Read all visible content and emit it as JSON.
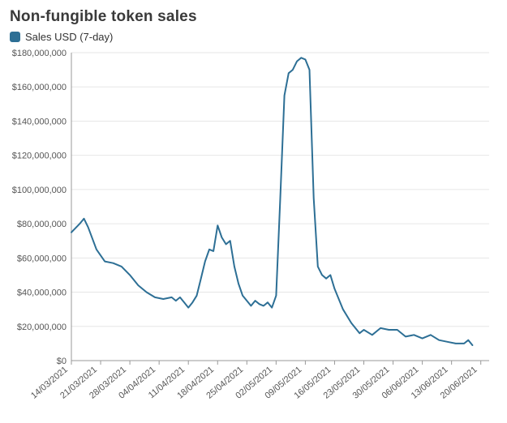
{
  "title": "Non-fungible token sales",
  "legend": {
    "label": "Sales USD (7-day)",
    "swatch_color": "#2d6f95"
  },
  "chart": {
    "type": "line",
    "line_color": "#2d6f95",
    "line_width": 2,
    "background_color": "#ffffff",
    "grid_color": "#e6e6e6",
    "axis_color": "#999999",
    "tick_font_size": 11,
    "tick_color": "#555555",
    "y": {
      "min": 0,
      "max": 180000000,
      "step": 20000000,
      "labels": [
        "$0",
        "$20,000,000",
        "$40,000,000",
        "$60,000,000",
        "$80,000,000",
        "$100,000,000",
        "$120,000,000",
        "$140,000,000",
        "$160,000,000",
        "$180,000,000"
      ]
    },
    "x": {
      "min": 0,
      "max": 100,
      "tick_positions": [
        0,
        7,
        14,
        21,
        28,
        35,
        42,
        49,
        56,
        63,
        70,
        77,
        84,
        91,
        98
      ],
      "tick_labels": [
        "14/03/2021",
        "21/03/2021",
        "28/03/2021",
        "04/04/2021",
        "11/04/2021",
        "18/04/2021",
        "25/04/2021",
        "02/05/2021",
        "09/05/2021",
        "16/05/2021",
        "23/05/2021",
        "30/05/2021",
        "06/06/2021",
        "13/06/2021",
        "20/06/2021"
      ],
      "tick_rotation": -40
    },
    "series": [
      {
        "x": 0,
        "y": 75000000
      },
      {
        "x": 2,
        "y": 80000000
      },
      {
        "x": 3,
        "y": 83000000
      },
      {
        "x": 4,
        "y": 78000000
      },
      {
        "x": 6,
        "y": 65000000
      },
      {
        "x": 8,
        "y": 58000000
      },
      {
        "x": 10,
        "y": 57000000
      },
      {
        "x": 12,
        "y": 55000000
      },
      {
        "x": 14,
        "y": 50000000
      },
      {
        "x": 16,
        "y": 44000000
      },
      {
        "x": 18,
        "y": 40000000
      },
      {
        "x": 20,
        "y": 37000000
      },
      {
        "x": 22,
        "y": 36000000
      },
      {
        "x": 24,
        "y": 37000000
      },
      {
        "x": 25,
        "y": 35000000
      },
      {
        "x": 26,
        "y": 37000000
      },
      {
        "x": 27,
        "y": 34000000
      },
      {
        "x": 28,
        "y": 31000000
      },
      {
        "x": 29,
        "y": 34000000
      },
      {
        "x": 30,
        "y": 38000000
      },
      {
        "x": 31,
        "y": 48000000
      },
      {
        "x": 32,
        "y": 58000000
      },
      {
        "x": 33,
        "y": 65000000
      },
      {
        "x": 34,
        "y": 64000000
      },
      {
        "x": 35,
        "y": 79000000
      },
      {
        "x": 36,
        "y": 72000000
      },
      {
        "x": 37,
        "y": 68000000
      },
      {
        "x": 38,
        "y": 70000000
      },
      {
        "x": 39,
        "y": 55000000
      },
      {
        "x": 40,
        "y": 45000000
      },
      {
        "x": 41,
        "y": 38000000
      },
      {
        "x": 42,
        "y": 35000000
      },
      {
        "x": 43,
        "y": 32000000
      },
      {
        "x": 44,
        "y": 35000000
      },
      {
        "x": 45,
        "y": 33000000
      },
      {
        "x": 46,
        "y": 32000000
      },
      {
        "x": 47,
        "y": 34000000
      },
      {
        "x": 48,
        "y": 31000000
      },
      {
        "x": 49,
        "y": 38000000
      },
      {
        "x": 50,
        "y": 95000000
      },
      {
        "x": 51,
        "y": 155000000
      },
      {
        "x": 52,
        "y": 168000000
      },
      {
        "x": 53,
        "y": 170000000
      },
      {
        "x": 54,
        "y": 175000000
      },
      {
        "x": 55,
        "y": 177000000
      },
      {
        "x": 56,
        "y": 176000000
      },
      {
        "x": 57,
        "y": 170000000
      },
      {
        "x": 58,
        "y": 95000000
      },
      {
        "x": 59,
        "y": 55000000
      },
      {
        "x": 60,
        "y": 50000000
      },
      {
        "x": 61,
        "y": 48000000
      },
      {
        "x": 62,
        "y": 50000000
      },
      {
        "x": 63,
        "y": 42000000
      },
      {
        "x": 65,
        "y": 30000000
      },
      {
        "x": 67,
        "y": 22000000
      },
      {
        "x": 69,
        "y": 16000000
      },
      {
        "x": 70,
        "y": 18000000
      },
      {
        "x": 72,
        "y": 15000000
      },
      {
        "x": 74,
        "y": 19000000
      },
      {
        "x": 76,
        "y": 18000000
      },
      {
        "x": 78,
        "y": 18000000
      },
      {
        "x": 80,
        "y": 14000000
      },
      {
        "x": 82,
        "y": 15000000
      },
      {
        "x": 84,
        "y": 13000000
      },
      {
        "x": 86,
        "y": 15000000
      },
      {
        "x": 88,
        "y": 12000000
      },
      {
        "x": 90,
        "y": 11000000
      },
      {
        "x": 92,
        "y": 10000000
      },
      {
        "x": 94,
        "y": 10000000
      },
      {
        "x": 95,
        "y": 12000000
      },
      {
        "x": 96,
        "y": 9000000
      }
    ]
  }
}
